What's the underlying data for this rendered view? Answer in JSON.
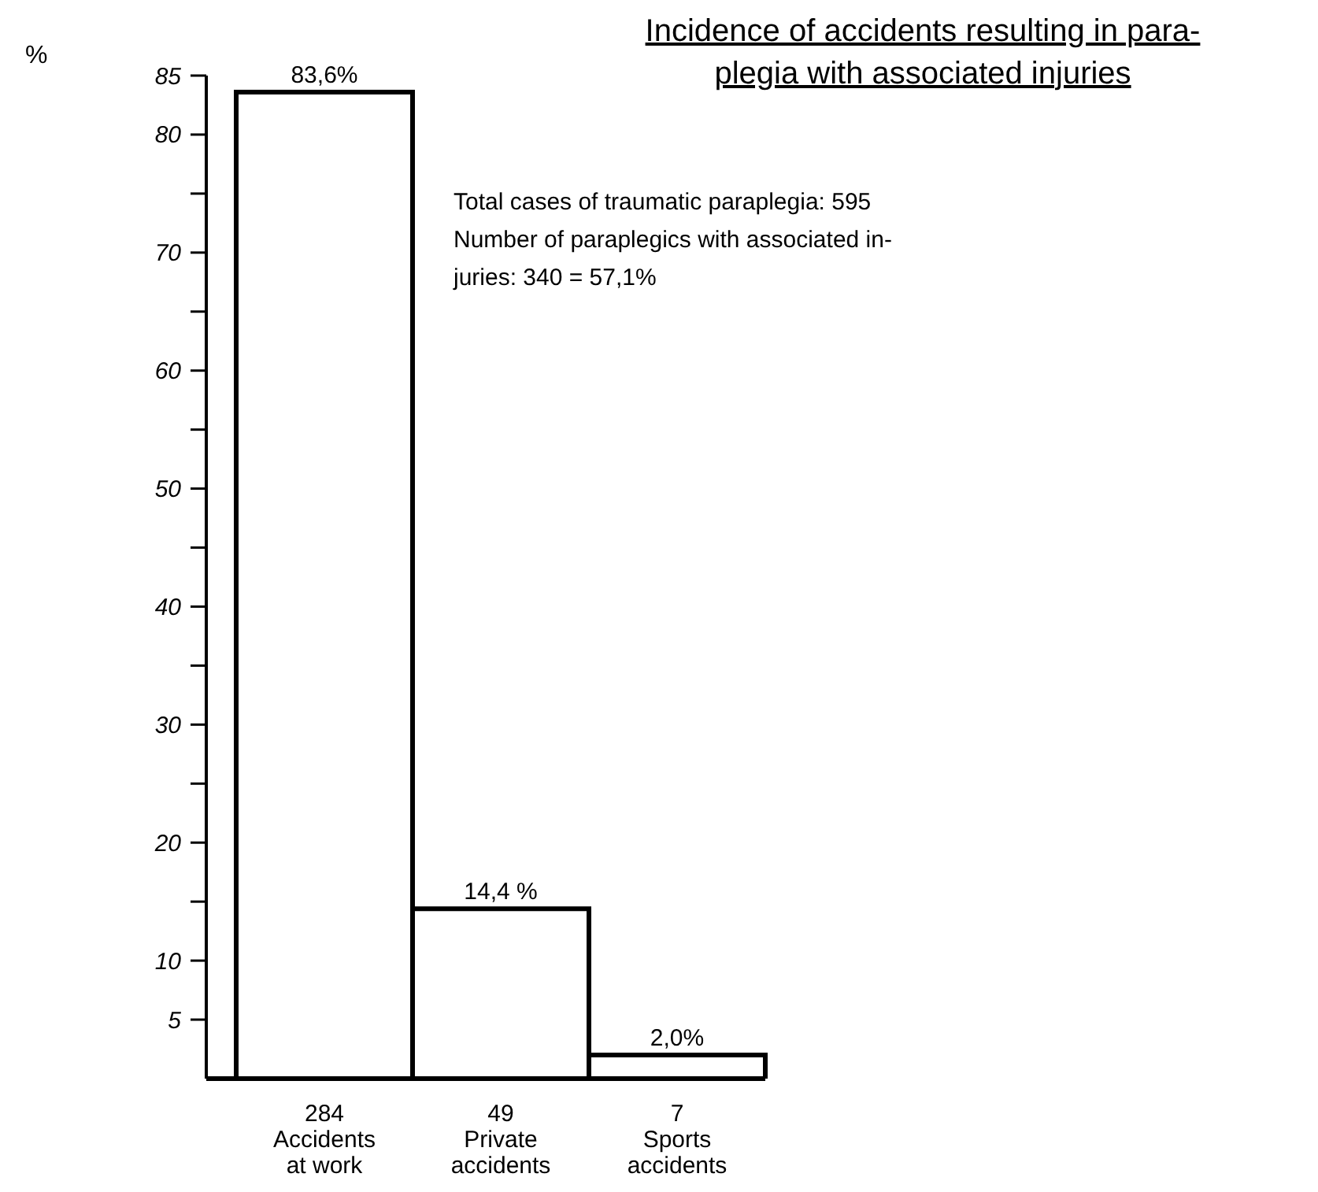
{
  "chart_data": {
    "type": "bar",
    "title": "Incidence of accidents resulting in para-\nplegia with associated injuries",
    "ylabel": "%",
    "annotations": [
      "Total cases of traumatic paraplegia: 595",
      "Number of paraplegics with associated in-\njuries: 340 = 57,1%"
    ],
    "categories": [
      "284\nAccidents\nat work",
      "49\nPrivate\naccidents",
      "7\nSports\naccidents"
    ],
    "values": [
      83.6,
      14.4,
      2.0
    ],
    "value_labels": [
      "83,6%",
      "14,4 %",
      "2,0%"
    ],
    "color": "#ffffff",
    "ylim": [
      0,
      85
    ],
    "yticks": [
      5,
      10,
      {
        "value": 15,
        "label": null
      },
      20,
      {
        "value": 25,
        "label": null
      },
      30,
      {
        "value": 35,
        "label": null
      },
      40,
      {
        "value": 45,
        "label": null
      },
      50,
      {
        "value": 55,
        "label": null
      },
      60,
      {
        "value": 65,
        "label": null
      },
      70,
      {
        "value": 75,
        "label": null
      },
      80,
      85
    ],
    "grid": false,
    "legend": false
  }
}
